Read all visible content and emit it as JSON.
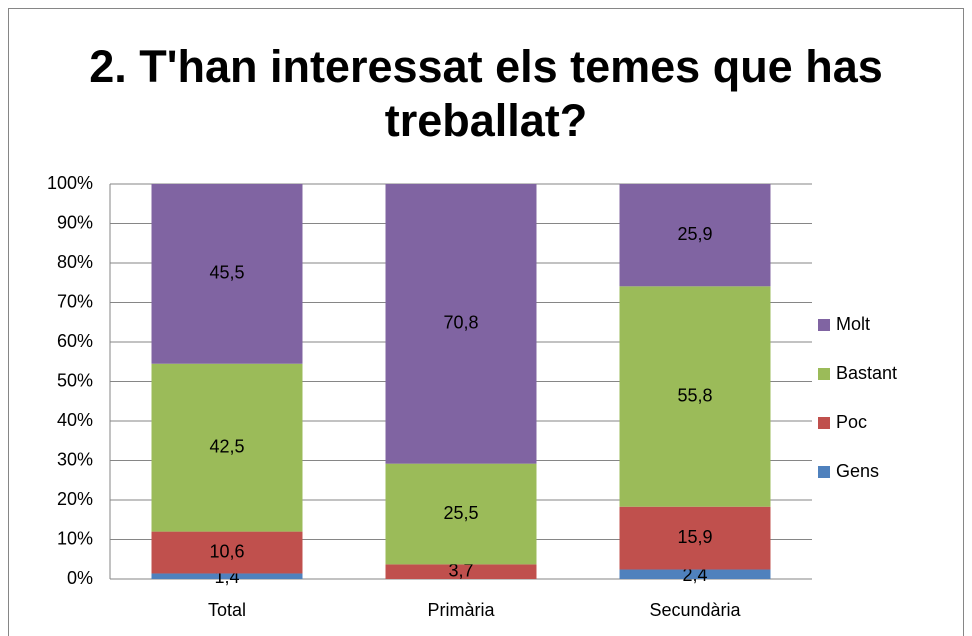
{
  "chart_data": {
    "type": "bar",
    "stacked": true,
    "title": "2. T'han interessat els temes que has treballat?",
    "categories": [
      "Total",
      "Primària",
      "Secundària"
    ],
    "series": [
      {
        "name": "Gens",
        "color": "#4f81bd",
        "values": [
          1.4,
          0,
          2.4
        ],
        "value_labels": [
          "1,4",
          null,
          "2,4"
        ]
      },
      {
        "name": "Poc",
        "color": "#c0504d",
        "values": [
          10.6,
          3.7,
          15.9
        ],
        "value_labels": [
          "10,6",
          "3,7",
          "15,9"
        ]
      },
      {
        "name": "Bastant",
        "color": "#9bbb59",
        "values": [
          42.5,
          25.5,
          55.8
        ],
        "value_labels": [
          "42,5",
          "25,5",
          "55,8"
        ]
      },
      {
        "name": "Molt",
        "color": "#8064a2",
        "values": [
          45.5,
          70.8,
          25.9
        ],
        "value_labels": [
          "45,5",
          "70,8",
          "25,9"
        ]
      }
    ],
    "ylim": [
      0,
      100
    ],
    "yticks": [
      {
        "value": 0,
        "label": "0%"
      },
      {
        "value": 10,
        "label": "10%"
      },
      {
        "value": 20,
        "label": "20%"
      },
      {
        "value": 30,
        "label": "30%"
      },
      {
        "value": 40,
        "label": "40%"
      },
      {
        "value": 50,
        "label": "50%"
      },
      {
        "value": 60,
        "label": "60%"
      },
      {
        "value": 70,
        "label": "70%"
      },
      {
        "value": 80,
        "label": "80%"
      },
      {
        "value": 90,
        "label": "90%"
      },
      {
        "value": 100,
        "label": "100%"
      }
    ],
    "grid": true,
    "legend": "right"
  }
}
